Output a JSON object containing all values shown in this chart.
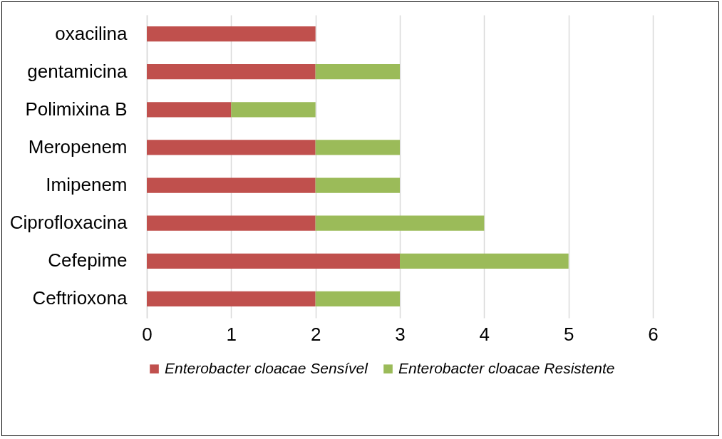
{
  "chart_data": {
    "type": "bar",
    "orientation": "horizontal",
    "stacked": true,
    "categories": [
      "oxacilina",
      "gentamicina",
      "Polimixina B",
      "Meropenem",
      "Imipenem",
      "Ciprofloxacina",
      "Cefepime",
      "Ceftrioxona"
    ],
    "series": [
      {
        "name": "Enterobacter cloacae Sensível",
        "color": "#c0504d",
        "values": [
          2,
          2,
          1,
          2,
          2,
          2,
          3,
          2
        ]
      },
      {
        "name": "Enterobacter cloacae Resistente",
        "color": "#9bbb59",
        "values": [
          null,
          1,
          1,
          1,
          1,
          2,
          2,
          1
        ]
      }
    ],
    "xlim": [
      0,
      6
    ],
    "xticks": [
      0,
      1,
      2,
      3,
      4,
      5,
      6
    ],
    "grid": "x",
    "legend": "bottom"
  }
}
